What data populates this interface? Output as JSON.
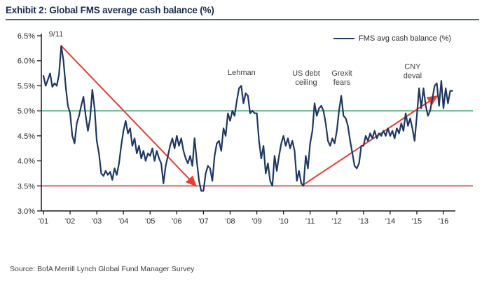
{
  "header": {
    "title": "Exhibit 2: Global FMS average cash balance (%)"
  },
  "legend": {
    "label": "FMS avg cash balance (%)"
  },
  "footer": {
    "source": "Source: BofA Merrill Lynch Global Fund Manager Survey"
  },
  "colors": {
    "title_navy": "#1b2a4e",
    "underline_blue": "#4a6590",
    "series_navy": "#1f3864",
    "green_line": "#0d9b50",
    "red_line": "#c02222",
    "arrow_red": "#ee3b30",
    "axis_black": "#1a1a1a",
    "text_gray": "#3d3d3d"
  },
  "chart_data": {
    "type": "line",
    "title": "Exhibit 2: Global FMS average cash balance (%)",
    "xlabel": "",
    "ylabel": "",
    "ylim": [
      3.0,
      6.5
    ],
    "xlim_years": [
      2001,
      2016.6
    ],
    "grid": false,
    "legend_position": "top-right",
    "y_ticks": [
      "3.0%",
      "3.5%",
      "4.0%",
      "4.5%",
      "5.0%",
      "5.5%",
      "6.0%",
      "6.5%"
    ],
    "y_tick_values": [
      3.0,
      3.5,
      4.0,
      4.5,
      5.0,
      5.5,
      6.0,
      6.5
    ],
    "x_ticks": [
      "'01",
      "'02",
      "'03",
      "'04",
      "'05",
      "'06",
      "'07",
      "'08",
      "'09",
      "'10",
      "'11",
      "'12",
      "'13",
      "'14",
      "'15",
      "'16"
    ],
    "x_tick_years": [
      2001,
      2002,
      2003,
      2004,
      2005,
      2006,
      2007,
      2008,
      2009,
      2010,
      2011,
      2012,
      2013,
      2014,
      2015,
      2016
    ],
    "series": [
      {
        "name": "FMS avg cash balance (%)",
        "start_year": 2001,
        "interval_months": 1,
        "values": [
          5.7,
          5.5,
          5.62,
          5.75,
          5.48,
          5.55,
          5.5,
          5.72,
          6.3,
          6.0,
          5.5,
          5.1,
          4.95,
          4.5,
          4.35,
          4.75,
          4.9,
          5.1,
          5.28,
          4.9,
          4.6,
          4.85,
          5.42,
          5.05,
          4.4,
          4.15,
          3.75,
          3.7,
          3.8,
          3.72,
          3.78,
          3.62,
          3.85,
          3.72,
          3.95,
          4.3,
          4.6,
          4.8,
          4.55,
          4.65,
          4.3,
          4.45,
          4.15,
          4.3,
          4.05,
          4.2,
          4.0,
          4.15,
          4.1,
          4.25,
          4.0,
          4.2,
          4.05,
          3.95,
          3.55,
          3.9,
          4.1,
          4.3,
          4.45,
          4.25,
          4.5,
          4.3,
          4.45,
          4.2,
          4.05,
          3.95,
          4.1,
          3.9,
          4.45,
          4.0,
          3.6,
          3.4,
          3.4,
          3.75,
          3.9,
          3.85,
          3.6,
          4.1,
          4.35,
          4.4,
          4.2,
          4.65,
          4.5,
          4.95,
          4.8,
          5.0,
          4.9,
          5.2,
          5.45,
          5.5,
          5.15,
          5.35,
          5.3,
          4.95,
          5.0,
          4.95,
          4.95,
          4.4,
          4.05,
          4.3,
          3.75,
          3.95,
          3.6,
          3.5,
          4.1,
          3.8,
          4.1,
          4.35,
          4.5,
          4.3,
          4.45,
          4.25,
          4.4,
          4.2,
          3.6,
          3.8,
          3.55,
          3.5,
          4.1,
          3.85,
          4.35,
          4.6,
          5.15,
          4.9,
          5.05,
          5.1,
          5.0,
          4.75,
          4.4,
          4.3,
          4.45,
          4.35,
          4.6,
          5.0,
          5.3,
          4.9,
          4.85,
          4.7,
          4.4,
          4.15,
          3.9,
          3.85,
          3.95,
          4.3,
          4.3,
          4.5,
          4.4,
          4.55,
          4.45,
          4.6,
          4.45,
          4.55,
          4.5,
          4.6,
          4.5,
          4.65,
          4.5,
          4.6,
          4.45,
          4.65,
          4.55,
          4.75,
          4.6,
          4.95,
          4.7,
          4.85,
          4.65,
          4.4,
          4.9,
          5.45,
          5.05,
          5.45,
          5.1,
          4.9,
          5.0,
          5.25,
          5.5,
          5.55,
          5.1,
          5.6,
          5.05,
          5.45,
          5.15,
          5.4,
          5.4
        ]
      }
    ],
    "reference_lines": [
      {
        "name": "5.0% level",
        "value": 5.0,
        "color_key": "green_line"
      },
      {
        "name": "3.5% level",
        "value": 3.5,
        "color_key": "red_line"
      }
    ],
    "annotations": [
      {
        "lines": [
          "9/11"
        ],
        "t": 0.47,
        "value": 6.54
      },
      {
        "lines": [
          "Lehman"
        ],
        "t": 7.43,
        "value": 5.77
      },
      {
        "lines": [
          "US debt",
          "ceiling"
        ],
        "t": 9.85,
        "value": 5.67
      },
      {
        "lines": [
          "Grexit",
          "fears"
        ],
        "t": 11.19,
        "value": 5.67
      },
      {
        "lines": [
          "CNY",
          "deval"
        ],
        "t": 13.84,
        "value": 5.8
      }
    ],
    "trend_arrows": [
      {
        "from_t": 0.665,
        "from_value": 6.3,
        "to_t": 5.68,
        "to_value": 3.52
      },
      {
        "from_t": 9.68,
        "from_value": 3.5,
        "to_t": 14.72,
        "to_value": 5.28
      }
    ]
  }
}
